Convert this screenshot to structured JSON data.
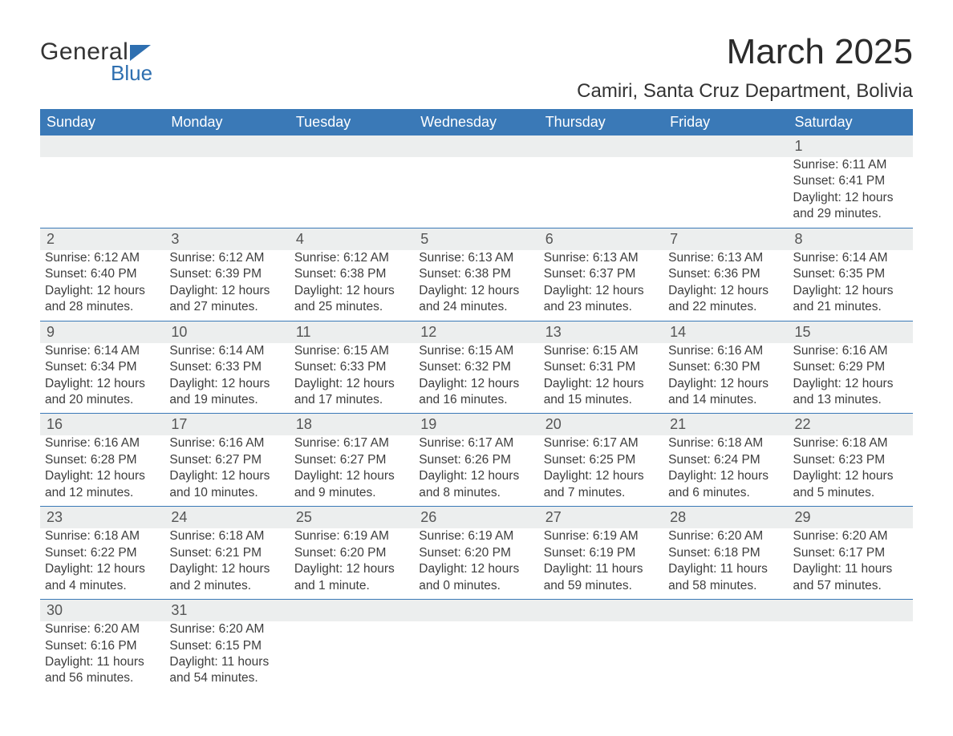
{
  "logo": {
    "text_top": "General",
    "text_bottom": "Blue"
  },
  "title": "March 2025",
  "location": "Camiri, Santa Cruz Department, Bolivia",
  "colors": {
    "header_bg": "#3a79b7",
    "header_text": "#ffffff",
    "band_bg": "#eceeee",
    "row_border": "#3a79b7",
    "text": "#3d3d3d",
    "logo_accent": "#2e6fb0"
  },
  "day_names": [
    "Sunday",
    "Monday",
    "Tuesday",
    "Wednesday",
    "Thursday",
    "Friday",
    "Saturday"
  ],
  "weeks": [
    {
      "nums": [
        "",
        "",
        "",
        "",
        "",
        "",
        "1"
      ],
      "cells": [
        null,
        null,
        null,
        null,
        null,
        null,
        {
          "sunrise": "Sunrise: 6:11 AM",
          "sunset": "Sunset: 6:41 PM",
          "day1": "Daylight: 12 hours",
          "day2": "and 29 minutes."
        }
      ]
    },
    {
      "nums": [
        "2",
        "3",
        "4",
        "5",
        "6",
        "7",
        "8"
      ],
      "cells": [
        {
          "sunrise": "Sunrise: 6:12 AM",
          "sunset": "Sunset: 6:40 PM",
          "day1": "Daylight: 12 hours",
          "day2": "and 28 minutes."
        },
        {
          "sunrise": "Sunrise: 6:12 AM",
          "sunset": "Sunset: 6:39 PM",
          "day1": "Daylight: 12 hours",
          "day2": "and 27 minutes."
        },
        {
          "sunrise": "Sunrise: 6:12 AM",
          "sunset": "Sunset: 6:38 PM",
          "day1": "Daylight: 12 hours",
          "day2": "and 25 minutes."
        },
        {
          "sunrise": "Sunrise: 6:13 AM",
          "sunset": "Sunset: 6:38 PM",
          "day1": "Daylight: 12 hours",
          "day2": "and 24 minutes."
        },
        {
          "sunrise": "Sunrise: 6:13 AM",
          "sunset": "Sunset: 6:37 PM",
          "day1": "Daylight: 12 hours",
          "day2": "and 23 minutes."
        },
        {
          "sunrise": "Sunrise: 6:13 AM",
          "sunset": "Sunset: 6:36 PM",
          "day1": "Daylight: 12 hours",
          "day2": "and 22 minutes."
        },
        {
          "sunrise": "Sunrise: 6:14 AM",
          "sunset": "Sunset: 6:35 PM",
          "day1": "Daylight: 12 hours",
          "day2": "and 21 minutes."
        }
      ]
    },
    {
      "nums": [
        "9",
        "10",
        "11",
        "12",
        "13",
        "14",
        "15"
      ],
      "cells": [
        {
          "sunrise": "Sunrise: 6:14 AM",
          "sunset": "Sunset: 6:34 PM",
          "day1": "Daylight: 12 hours",
          "day2": "and 20 minutes."
        },
        {
          "sunrise": "Sunrise: 6:14 AM",
          "sunset": "Sunset: 6:33 PM",
          "day1": "Daylight: 12 hours",
          "day2": "and 19 minutes."
        },
        {
          "sunrise": "Sunrise: 6:15 AM",
          "sunset": "Sunset: 6:33 PM",
          "day1": "Daylight: 12 hours",
          "day2": "and 17 minutes."
        },
        {
          "sunrise": "Sunrise: 6:15 AM",
          "sunset": "Sunset: 6:32 PM",
          "day1": "Daylight: 12 hours",
          "day2": "and 16 minutes."
        },
        {
          "sunrise": "Sunrise: 6:15 AM",
          "sunset": "Sunset: 6:31 PM",
          "day1": "Daylight: 12 hours",
          "day2": "and 15 minutes."
        },
        {
          "sunrise": "Sunrise: 6:16 AM",
          "sunset": "Sunset: 6:30 PM",
          "day1": "Daylight: 12 hours",
          "day2": "and 14 minutes."
        },
        {
          "sunrise": "Sunrise: 6:16 AM",
          "sunset": "Sunset: 6:29 PM",
          "day1": "Daylight: 12 hours",
          "day2": "and 13 minutes."
        }
      ]
    },
    {
      "nums": [
        "16",
        "17",
        "18",
        "19",
        "20",
        "21",
        "22"
      ],
      "cells": [
        {
          "sunrise": "Sunrise: 6:16 AM",
          "sunset": "Sunset: 6:28 PM",
          "day1": "Daylight: 12 hours",
          "day2": "and 12 minutes."
        },
        {
          "sunrise": "Sunrise: 6:16 AM",
          "sunset": "Sunset: 6:27 PM",
          "day1": "Daylight: 12 hours",
          "day2": "and 10 minutes."
        },
        {
          "sunrise": "Sunrise: 6:17 AM",
          "sunset": "Sunset: 6:27 PM",
          "day1": "Daylight: 12 hours",
          "day2": "and 9 minutes."
        },
        {
          "sunrise": "Sunrise: 6:17 AM",
          "sunset": "Sunset: 6:26 PM",
          "day1": "Daylight: 12 hours",
          "day2": "and 8 minutes."
        },
        {
          "sunrise": "Sunrise: 6:17 AM",
          "sunset": "Sunset: 6:25 PM",
          "day1": "Daylight: 12 hours",
          "day2": "and 7 minutes."
        },
        {
          "sunrise": "Sunrise: 6:18 AM",
          "sunset": "Sunset: 6:24 PM",
          "day1": "Daylight: 12 hours",
          "day2": "and 6 minutes."
        },
        {
          "sunrise": "Sunrise: 6:18 AM",
          "sunset": "Sunset: 6:23 PM",
          "day1": "Daylight: 12 hours",
          "day2": "and 5 minutes."
        }
      ]
    },
    {
      "nums": [
        "23",
        "24",
        "25",
        "26",
        "27",
        "28",
        "29"
      ],
      "cells": [
        {
          "sunrise": "Sunrise: 6:18 AM",
          "sunset": "Sunset: 6:22 PM",
          "day1": "Daylight: 12 hours",
          "day2": "and 4 minutes."
        },
        {
          "sunrise": "Sunrise: 6:18 AM",
          "sunset": "Sunset: 6:21 PM",
          "day1": "Daylight: 12 hours",
          "day2": "and 2 minutes."
        },
        {
          "sunrise": "Sunrise: 6:19 AM",
          "sunset": "Sunset: 6:20 PM",
          "day1": "Daylight: 12 hours",
          "day2": "and 1 minute."
        },
        {
          "sunrise": "Sunrise: 6:19 AM",
          "sunset": "Sunset: 6:20 PM",
          "day1": "Daylight: 12 hours",
          "day2": "and 0 minutes."
        },
        {
          "sunrise": "Sunrise: 6:19 AM",
          "sunset": "Sunset: 6:19 PM",
          "day1": "Daylight: 11 hours",
          "day2": "and 59 minutes."
        },
        {
          "sunrise": "Sunrise: 6:20 AM",
          "sunset": "Sunset: 6:18 PM",
          "day1": "Daylight: 11 hours",
          "day2": "and 58 minutes."
        },
        {
          "sunrise": "Sunrise: 6:20 AM",
          "sunset": "Sunset: 6:17 PM",
          "day1": "Daylight: 11 hours",
          "day2": "and 57 minutes."
        }
      ]
    },
    {
      "nums": [
        "30",
        "31",
        "",
        "",
        "",
        "",
        ""
      ],
      "cells": [
        {
          "sunrise": "Sunrise: 6:20 AM",
          "sunset": "Sunset: 6:16 PM",
          "day1": "Daylight: 11 hours",
          "day2": "and 56 minutes."
        },
        {
          "sunrise": "Sunrise: 6:20 AM",
          "sunset": "Sunset: 6:15 PM",
          "day1": "Daylight: 11 hours",
          "day2": "and 54 minutes."
        },
        null,
        null,
        null,
        null,
        null
      ]
    }
  ]
}
